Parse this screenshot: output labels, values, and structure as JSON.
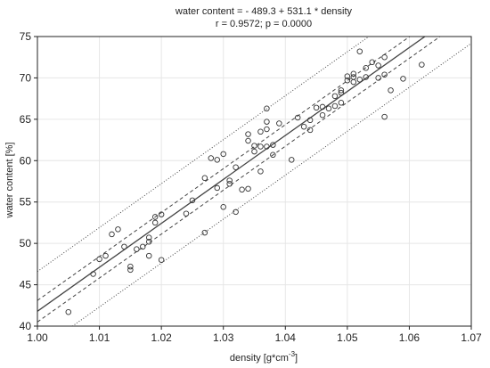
{
  "chart_data": {
    "type": "scatter",
    "title": "water content = - 489.3 + 531.1 * density",
    "subtitle": "r = 0.9572; p = 0.0000",
    "xlabel": "density [g*cm",
    "xlabel_sup": "-3",
    "xlabel_end": "]",
    "ylabel": "water content [%]",
    "xlim": [
      1.0,
      1.07
    ],
    "ylim": [
      40,
      75
    ],
    "x_ticks": [
      "1.00",
      "1.01",
      "1.02",
      "1.03",
      "1.04",
      "1.05",
      "1.06",
      "1.07"
    ],
    "y_ticks": [
      "40",
      "45",
      "50",
      "55",
      "60",
      "65",
      "70",
      "75"
    ],
    "grid": true,
    "regression": {
      "intercept": -489.3,
      "slope": 531.1
    },
    "confidence_band_halfwidth": 1.3,
    "prediction_band_halfwidth": 4.8,
    "points": [
      [
        1.005,
        41.7
      ],
      [
        1.009,
        46.3
      ],
      [
        1.01,
        48.1
      ],
      [
        1.011,
        48.5
      ],
      [
        1.012,
        51.1
      ],
      [
        1.013,
        51.7
      ],
      [
        1.014,
        49.6
      ],
      [
        1.015,
        47.2
      ],
      [
        1.015,
        46.8
      ],
      [
        1.016,
        49.3
      ],
      [
        1.017,
        49.6
      ],
      [
        1.018,
        50.7
      ],
      [
        1.018,
        50.2
      ],
      [
        1.018,
        48.5
      ],
      [
        1.019,
        53.2
      ],
      [
        1.019,
        52.5
      ],
      [
        1.02,
        53.5
      ],
      [
        1.02,
        48.0
      ],
      [
        1.024,
        53.6
      ],
      [
        1.025,
        55.2
      ],
      [
        1.027,
        57.9
      ],
      [
        1.027,
        51.3
      ],
      [
        1.028,
        60.3
      ],
      [
        1.029,
        60.1
      ],
      [
        1.029,
        56.7
      ],
      [
        1.03,
        60.8
      ],
      [
        1.03,
        54.4
      ],
      [
        1.031,
        57.2
      ],
      [
        1.031,
        57.6
      ],
      [
        1.032,
        59.2
      ],
      [
        1.032,
        53.8
      ],
      [
        1.033,
        56.5
      ],
      [
        1.034,
        56.6
      ],
      [
        1.034,
        63.2
      ],
      [
        1.034,
        62.4
      ],
      [
        1.035,
        61.1
      ],
      [
        1.035,
        61.8
      ],
      [
        1.036,
        61.7
      ],
      [
        1.036,
        63.5
      ],
      [
        1.037,
        63.8
      ],
      [
        1.036,
        58.7
      ],
      [
        1.037,
        64.7
      ],
      [
        1.037,
        66.3
      ],
      [
        1.037,
        61.7
      ],
      [
        1.038,
        61.9
      ],
      [
        1.038,
        60.7
      ],
      [
        1.039,
        64.5
      ],
      [
        1.041,
        60.1
      ],
      [
        1.042,
        65.2
      ],
      [
        1.043,
        64.1
      ],
      [
        1.044,
        64.9
      ],
      [
        1.044,
        63.7
      ],
      [
        1.045,
        66.4
      ],
      [
        1.046,
        66.5
      ],
      [
        1.046,
        65.5
      ],
      [
        1.047,
        66.3
      ],
      [
        1.048,
        67.8
      ],
      [
        1.048,
        66.6
      ],
      [
        1.049,
        68.2
      ],
      [
        1.049,
        68.5
      ],
      [
        1.049,
        67.0
      ],
      [
        1.05,
        69.7
      ],
      [
        1.05,
        70.2
      ],
      [
        1.051,
        70.5
      ],
      [
        1.051,
        70.1
      ],
      [
        1.051,
        69.5
      ],
      [
        1.052,
        69.8
      ],
      [
        1.052,
        73.2
      ],
      [
        1.053,
        71.2
      ],
      [
        1.055,
        71.5
      ],
      [
        1.055,
        70.0
      ],
      [
        1.056,
        72.5
      ],
      [
        1.056,
        70.4
      ],
      [
        1.056,
        65.3
      ],
      [
        1.057,
        68.5
      ],
      [
        1.059,
        69.9
      ],
      [
        1.062,
        71.6
      ],
      [
        1.053,
        70.1
      ],
      [
        1.054,
        71.9
      ]
    ]
  }
}
